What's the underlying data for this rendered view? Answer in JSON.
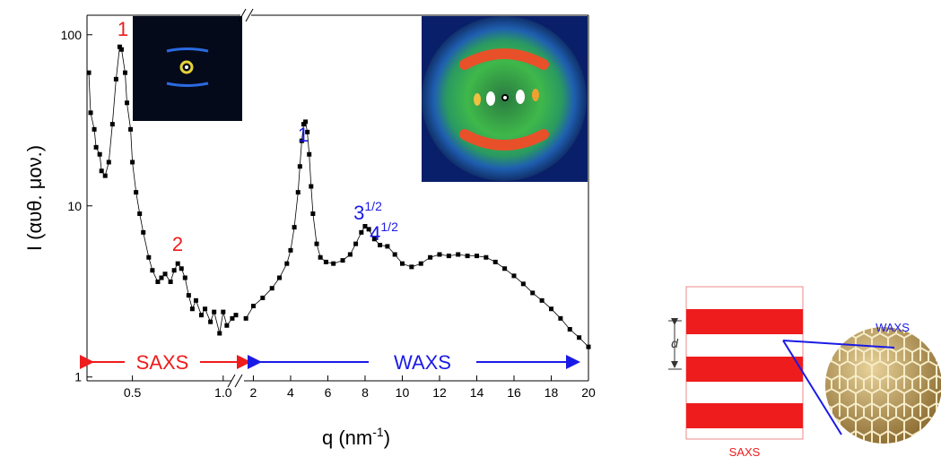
{
  "chart_data": {
    "type": "line",
    "log_y": true,
    "ylabel": "I (αυθ. μον.)",
    "xlabel": {
      "text": "q (nm",
      "sup": "-1",
      "end": ")"
    },
    "ylim": [
      0.95,
      130
    ],
    "yticks": [
      1,
      10,
      100
    ],
    "line_color": "#000000",
    "panels": [
      {
        "xlim": [
          0.25,
          1.08
        ],
        "xticks": [
          0.5,
          {
            "value": 1,
            "label": "1.0"
          }
        ],
        "region_label": "SAXS",
        "region_color": "#ee1c1c",
        "annotations": [
          {
            "label": "1"
          },
          {
            "label": "2"
          }
        ],
        "series": [
          {
            "x": [
              0.26,
              0.27,
              0.29,
              0.3,
              0.32,
              0.33,
              0.35,
              0.37,
              0.39,
              0.41,
              0.43,
              0.44,
              0.46,
              0.47,
              0.49,
              0.5,
              0.52,
              0.54,
              0.56,
              0.59,
              0.61,
              0.64,
              0.66,
              0.68,
              0.71,
              0.73,
              0.75,
              0.77,
              0.79,
              0.81,
              0.83,
              0.85,
              0.88,
              0.9,
              0.93,
              0.95,
              0.98,
              1.0,
              1.02,
              1.05,
              1.07
            ],
            "values": [
              60,
              35,
              28,
              22,
              20,
              16,
              15,
              18,
              30,
              55,
              85,
              82,
              60,
              40,
              28,
              18,
              12,
              9,
              7,
              5,
              4.2,
              3.6,
              3.8,
              4.0,
              3.6,
              4.2,
              4.6,
              4.3,
              3.8,
              3.0,
              2.5,
              2.8,
              2.3,
              2.5,
              2.1,
              2.4,
              1.8,
              2.4,
              2.0,
              2.2,
              2.3
            ]
          }
        ]
      },
      {
        "xlim": [
          1.4,
          20
        ],
        "xticks": [
          2,
          4,
          6,
          8,
          10,
          12,
          14,
          16,
          18,
          20
        ],
        "region_label": "WAXS",
        "region_color": "#1a1ae6",
        "annotations": [
          {
            "label": "1"
          },
          {
            "label": "3",
            "sup": "1/2"
          },
          {
            "label": "4",
            "sup": "1/2"
          }
        ],
        "series": [
          {
            "x": [
              1.6,
              2.0,
              2.5,
              3.0,
              3.4,
              3.8,
              4.0,
              4.2,
              4.4,
              4.5,
              4.6,
              4.7,
              4.8,
              4.9,
              5.0,
              5.1,
              5.2,
              5.4,
              5.6,
              5.9,
              6.3,
              6.8,
              7.2,
              7.5,
              7.8,
              8.0,
              8.2,
              8.5,
              8.8,
              9.2,
              9.6,
              10.0,
              10.5,
              11.0,
              11.5,
              12.0,
              12.5,
              13.0,
              13.5,
              14.0,
              14.5,
              15.0,
              15.5,
              16.0,
              16.5,
              17.0,
              17.5,
              18.0,
              18.5,
              19.0,
              19.5,
              20.0
            ],
            "values": [
              2.2,
              2.6,
              2.9,
              3.3,
              3.8,
              4.6,
              5.5,
              7.5,
              12,
              17,
              24,
              30,
              31,
              27,
              20,
              13,
              9,
              6,
              5,
              4.7,
              4.6,
              4.8,
              5.2,
              6.0,
              7.0,
              7.6,
              7.3,
              6.4,
              5.9,
              5.8,
              5.2,
              4.6,
              4.4,
              4.6,
              5.0,
              5.2,
              5.1,
              5.2,
              5.1,
              5.1,
              5.0,
              4.7,
              4.3,
              3.9,
              3.5,
              3.1,
              2.8,
              2.5,
              2.2,
              1.9,
              1.7,
              1.5
            ]
          }
        ]
      }
    ]
  },
  "schematic": {
    "d_label": "d",
    "waxs_label": "WAXS",
    "saxs_label": "SAXS"
  }
}
